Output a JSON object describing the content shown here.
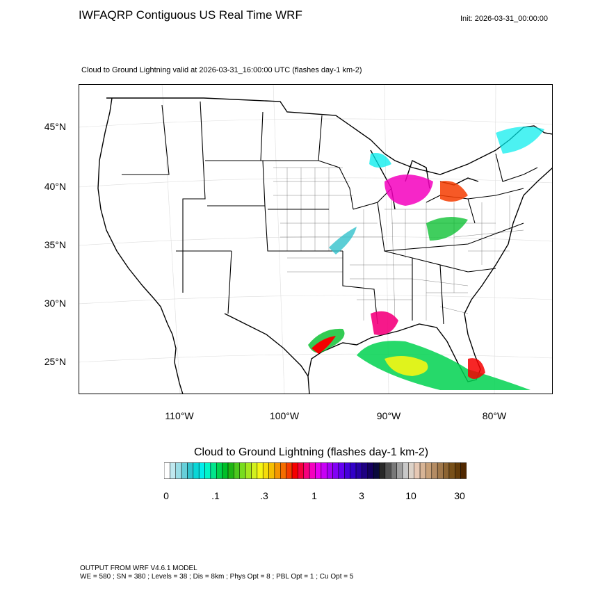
{
  "header": {
    "title": "IWFAQRP Contiguous US Real Time WRF",
    "init": "Init: 2026-03-31_00:00:00",
    "subtitle": "Cloud to Ground Lightning valid at 2026-03-31_16:00:00 UTC   (flashes day-1 km-2)"
  },
  "map": {
    "lat_labels": [
      "45°N",
      "40°N",
      "35°N",
      "30°N",
      "25°N"
    ],
    "lon_labels": [
      "110°W",
      "100°W",
      "90°W",
      "80°W"
    ],
    "background_color": "#ffffff",
    "boundary_color": "#000000"
  },
  "colorbar": {
    "title": "Cloud to Ground Lightning  (flashes day-1 km-2)",
    "tick_labels": [
      "0",
      ".1",
      ".3",
      "1",
      "3",
      "10",
      "30"
    ],
    "colors": [
      "#ffffff",
      "#bfe8ef",
      "#9adde6",
      "#66cfd9",
      "#33c2cc",
      "#0ad6d6",
      "#00ecec",
      "#00f5c8",
      "#00e68c",
      "#00d250",
      "#00be28",
      "#1fb414",
      "#4cc81e",
      "#78dc1e",
      "#a5e61e",
      "#d2f01e",
      "#f5f514",
      "#f5dc0a",
      "#f5be00",
      "#f59600",
      "#f56e00",
      "#f53c00",
      "#f50000",
      "#f5003c",
      "#f5007d",
      "#f500be",
      "#e600f0",
      "#c800f5",
      "#a500f5",
      "#8200f5",
      "#6400f0",
      "#4600dc",
      "#3200c8",
      "#2800a5",
      "#1e0082",
      "#14005f",
      "#0a0a3c",
      "#282828",
      "#505050",
      "#787878",
      "#a0a0a0",
      "#c8c8c8",
      "#dcd2c8",
      "#e6c8b4",
      "#d7b496",
      "#c8a078",
      "#b48c64",
      "#a0784b",
      "#8c6432",
      "#785019",
      "#643c0a",
      "#502800"
    ]
  },
  "footer": {
    "line1": "OUTPUT FROM WRF V4.6.1 MODEL",
    "line2": "WE = 580 ; SN = 380 ; Levels = 38 ; Dis = 8km ; Phys Opt = 8 ; PBL Opt = 1 ; Cu Opt = 5"
  }
}
